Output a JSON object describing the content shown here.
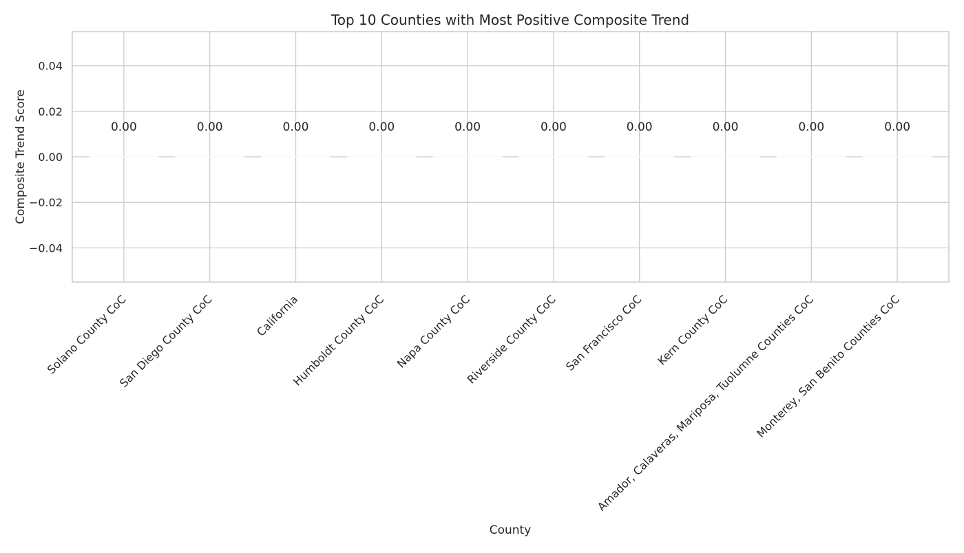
{
  "chart_data": {
    "type": "bar",
    "title": "Top 10 Counties with Most Positive Composite Trend",
    "xlabel": "County",
    "ylabel": "Composite Trend Score",
    "categories": [
      "Solano County CoC",
      "San Diego County CoC",
      "California",
      "Humboldt County CoC",
      "Napa County CoC",
      "Riverside County CoC",
      "San Francisco CoC",
      "Kern County CoC",
      "Amador, Calaveras, Mariposa, Tuolumne Counties CoC",
      "Monterey, San Benito Counties CoC"
    ],
    "values": [
      0,
      0,
      0,
      0,
      0,
      0,
      0,
      0,
      0,
      0
    ],
    "data_labels": [
      "0.00",
      "0.00",
      "0.00",
      "0.00",
      "0.00",
      "0.00",
      "0.00",
      "0.00",
      "0.00",
      "0.00"
    ],
    "ylim": [
      -0.055,
      0.055
    ],
    "yticks": [
      -0.04,
      -0.02,
      0.0,
      0.02,
      0.04
    ],
    "ytick_labels": [
      "−0.04",
      "−0.02",
      "0.00",
      "0.02",
      "0.04"
    ],
    "grid": true,
    "legend": "none",
    "colors": {
      "grid": "#cccccc",
      "spine": "#cccccc",
      "text": "#262626",
      "bar": "#4c72b0"
    }
  }
}
